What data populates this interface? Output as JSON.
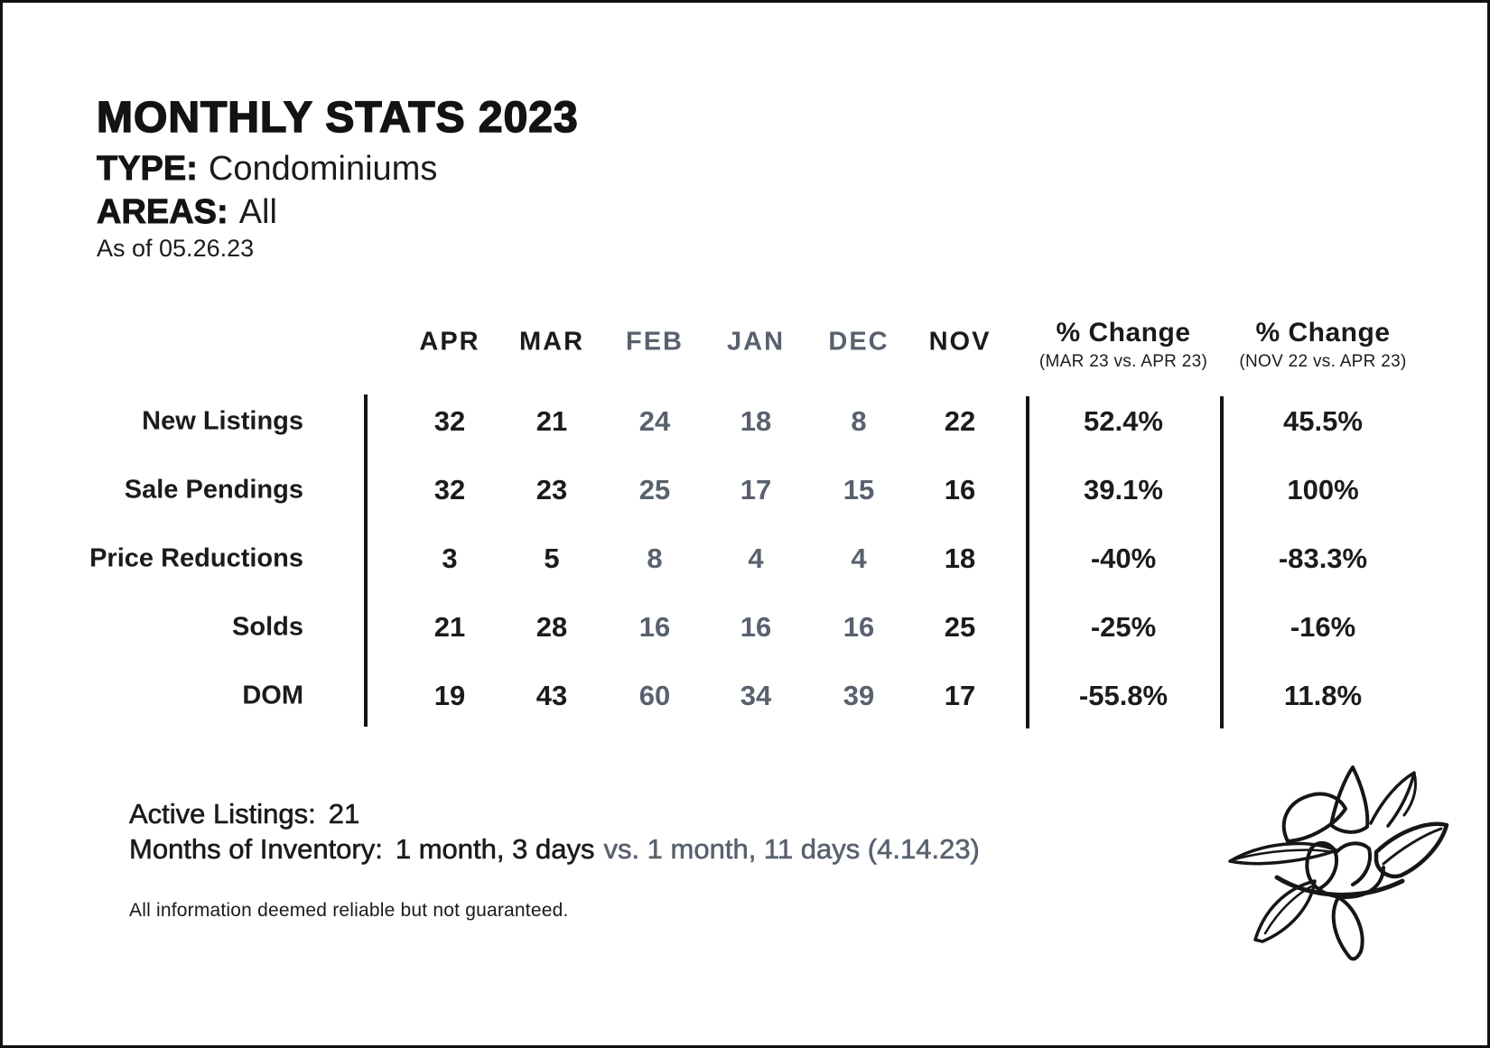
{
  "header": {
    "title": "MONTHLY STATS 2023",
    "type_label": "TYPE:",
    "type_value": "Condominiums",
    "areas_label": "AREAS:",
    "areas_value": "All",
    "as_of": "As of 05.26.23"
  },
  "table": {
    "month_columns": [
      {
        "label": "APR",
        "tone": "dark"
      },
      {
        "label": "MAR",
        "tone": "dark"
      },
      {
        "label": "FEB",
        "tone": "gray"
      },
      {
        "label": "JAN",
        "tone": "gray"
      },
      {
        "label": "DEC",
        "tone": "gray"
      },
      {
        "label": "NOV",
        "tone": "dark"
      }
    ],
    "change_columns": [
      {
        "title": "% Change",
        "subtitle": "(MAR 23 vs. APR 23)"
      },
      {
        "title": "% Change",
        "subtitle": "(NOV 22 vs. APR 23)"
      }
    ],
    "rows": [
      {
        "label": "New Listings",
        "values": [
          "32",
          "21",
          "24",
          "18",
          "8",
          "22"
        ],
        "changes": [
          "52.4%",
          "45.5%"
        ]
      },
      {
        "label": "Sale Pendings",
        "values": [
          "32",
          "23",
          "25",
          "17",
          "15",
          "16"
        ],
        "changes": [
          "39.1%",
          "100%"
        ]
      },
      {
        "label": "Price Reductions",
        "values": [
          "3",
          "5",
          "8",
          "4",
          "4",
          "18"
        ],
        "changes": [
          "-40%",
          "-83.3%"
        ]
      },
      {
        "label": "Solds",
        "values": [
          "21",
          "28",
          "16",
          "16",
          "16",
          "25"
        ],
        "changes": [
          "-25%",
          "-16%"
        ]
      },
      {
        "label": "DOM",
        "values": [
          "19",
          "43",
          "60",
          "34",
          "39",
          "17"
        ],
        "changes": [
          "-55.8%",
          "11.8%"
        ]
      }
    ]
  },
  "footer": {
    "active_listings_label": "Active Listings:",
    "active_listings_value": "21",
    "inventory_label": "Months of Inventory:",
    "inventory_current": "1 month, 3 days",
    "inventory_comparison": "vs. 1 month, 11 days (4.14.23)",
    "disclaimer": "All information deemed reliable but not guaranteed."
  },
  "logo": "magnolia-flower-line-art",
  "colors": {
    "ink": "#1b1b1d",
    "slate": "#59616f",
    "background": "#ffffff",
    "border": "#111111"
  }
}
